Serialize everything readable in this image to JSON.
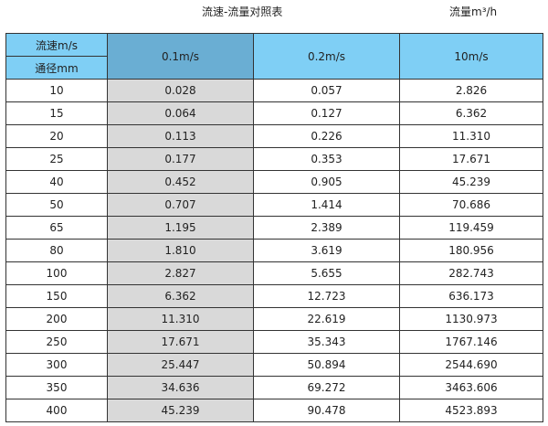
{
  "title": "流速-流量对照表",
  "unit": "流量m³/h",
  "header": {
    "speed_label": "流速m/s",
    "diameter_label": "通径mm",
    "columns": [
      "0.1m/s",
      "0.2m/s",
      "10m/s"
    ]
  },
  "colors": {
    "header": "#7fcff5",
    "header_selected": "#6aaed3",
    "highlight_column": "#d9d9d9"
  },
  "rows": [
    [
      "10",
      "0.028",
      "0.057",
      "2.826"
    ],
    [
      "15",
      "0.064",
      "0.127",
      "6.362"
    ],
    [
      "20",
      "0.113",
      "0.226",
      "11.310"
    ],
    [
      "25",
      "0.177",
      "0.353",
      "17.671"
    ],
    [
      "40",
      "0.452",
      "0.905",
      "45.239"
    ],
    [
      "50",
      "0.707",
      "1.414",
      "70.686"
    ],
    [
      "65",
      "1.195",
      "2.389",
      "119.459"
    ],
    [
      "80",
      "1.810",
      "3.619",
      "180.956"
    ],
    [
      "100",
      "2.827",
      "5.655",
      "282.743"
    ],
    [
      "150",
      "6.362",
      "12.723",
      "636.173"
    ],
    [
      "200",
      "11.310",
      "22.619",
      "1130.973"
    ],
    [
      "250",
      "17.671",
      "35.343",
      "1767.146"
    ],
    [
      "300",
      "25.447",
      "50.894",
      "2544.690"
    ],
    [
      "350",
      "34.636",
      "69.272",
      "3463.606"
    ],
    [
      "400",
      "45.239",
      "90.478",
      "4523.893"
    ]
  ]
}
